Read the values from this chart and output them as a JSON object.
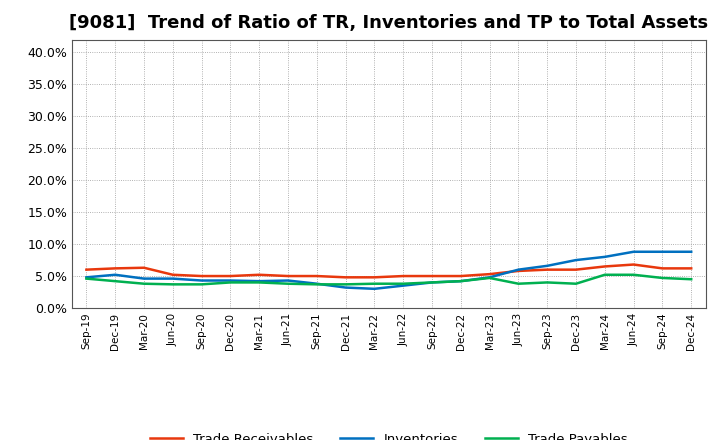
{
  "title": "[9081]  Trend of Ratio of TR, Inventories and TP to Total Assets",
  "x_labels": [
    "Sep-19",
    "Dec-19",
    "Mar-20",
    "Jun-20",
    "Sep-20",
    "Dec-20",
    "Mar-21",
    "Jun-21",
    "Sep-21",
    "Dec-21",
    "Mar-22",
    "Jun-22",
    "Sep-22",
    "Dec-22",
    "Mar-23",
    "Jun-23",
    "Sep-23",
    "Dec-23",
    "Mar-24",
    "Jun-24",
    "Sep-24",
    "Dec-24"
  ],
  "trade_receivables": [
    0.06,
    0.062,
    0.063,
    0.052,
    0.05,
    0.05,
    0.052,
    0.05,
    0.05,
    0.048,
    0.048,
    0.05,
    0.05,
    0.05,
    0.053,
    0.058,
    0.06,
    0.06,
    0.065,
    0.068,
    0.062,
    0.062
  ],
  "inventories": [
    0.048,
    0.052,
    0.046,
    0.046,
    0.043,
    0.043,
    0.042,
    0.043,
    0.038,
    0.032,
    0.03,
    0.035,
    0.04,
    0.042,
    0.048,
    0.06,
    0.066,
    0.075,
    0.08,
    0.088,
    0.088,
    0.088
  ],
  "trade_payables": [
    0.046,
    0.042,
    0.038,
    0.037,
    0.037,
    0.04,
    0.04,
    0.038,
    0.037,
    0.037,
    0.038,
    0.038,
    0.04,
    0.042,
    0.047,
    0.038,
    0.04,
    0.038,
    0.052,
    0.052,
    0.047,
    0.045
  ],
  "line_color_tr": "#e8380d",
  "line_color_inv": "#0070c0",
  "line_color_tp": "#00b050",
  "ylim": [
    0.0,
    0.42
  ],
  "yticks": [
    0.0,
    0.05,
    0.1,
    0.15,
    0.2,
    0.25,
    0.3,
    0.35,
    0.4
  ],
  "background_color": "#ffffff",
  "grid_color": "#aaaaaa",
  "title_fontsize": 13,
  "legend_labels": [
    "Trade Receivables",
    "Inventories",
    "Trade Payables"
  ]
}
